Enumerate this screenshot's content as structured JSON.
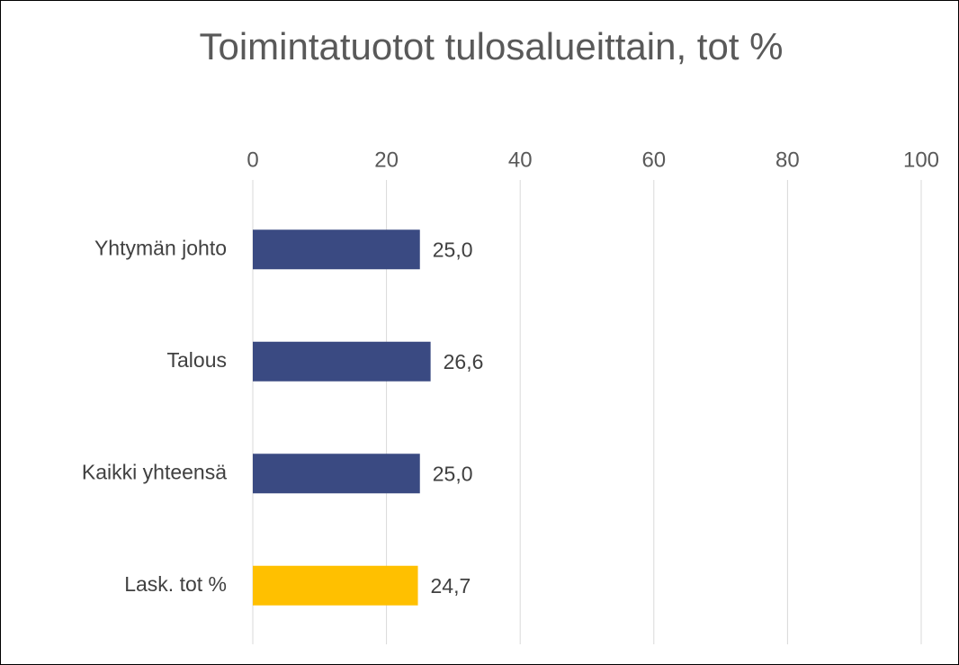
{
  "chart_data": {
    "type": "bar",
    "orientation": "horizontal",
    "title": "Toimintatuotot tulosalueittain, tot %",
    "categories": [
      "Yhtymän johto",
      "Talous",
      "Kaikki yhteensä",
      "Lask. tot %"
    ],
    "values": [
      25.0,
      26.6,
      25.0,
      24.7
    ],
    "value_labels": [
      "25,0",
      "26,6",
      "25,0",
      "24,7"
    ],
    "colors": [
      "#3a4a82",
      "#3a4a82",
      "#3a4a82",
      "#ffc000"
    ],
    "xlim": [
      0,
      100
    ],
    "xticks": [
      0,
      20,
      40,
      60,
      80,
      100
    ],
    "grid": true
  }
}
